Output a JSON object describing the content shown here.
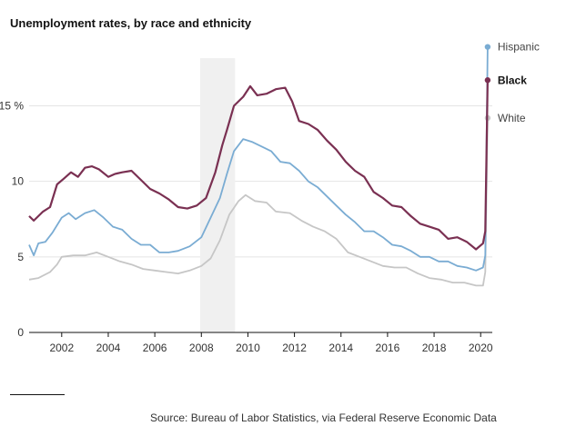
{
  "chart_data": {
    "type": "line",
    "title": "Unemployment rates, by race and ethnicity",
    "source": "Source: Bureau of Labor Statistics, via Federal Reserve Economic Data",
    "xlim": [
      2000.6,
      2020.5
    ],
    "ylim": [
      0,
      19
    ],
    "x_ticks": [
      2002,
      2004,
      2006,
      2008,
      2010,
      2012,
      2014,
      2016,
      2018,
      2020
    ],
    "x_tick_labels": [
      "2002",
      "2004",
      "2006",
      "2008",
      "2010",
      "2012",
      "2014",
      "2016",
      "2018",
      "2020"
    ],
    "y_ticks": [
      0,
      5,
      10,
      15
    ],
    "y_tick_labels": [
      "0",
      "5",
      "10",
      "15 %"
    ],
    "grid": "horizontal",
    "recession_band": [
      2007.95,
      2009.45
    ],
    "series": [
      {
        "name": "White",
        "color": "#c6c6c6",
        "label_bold": false,
        "points": [
          [
            2000.6,
            3.5
          ],
          [
            2001.0,
            3.6
          ],
          [
            2001.5,
            4.0
          ],
          [
            2001.8,
            4.5
          ],
          [
            2002.0,
            5.0
          ],
          [
            2002.5,
            5.1
          ],
          [
            2003.0,
            5.1
          ],
          [
            2003.5,
            5.3
          ],
          [
            2004.0,
            5.0
          ],
          [
            2004.5,
            4.7
          ],
          [
            2005.0,
            4.5
          ],
          [
            2005.5,
            4.2
          ],
          [
            2006.0,
            4.1
          ],
          [
            2006.5,
            4.0
          ],
          [
            2007.0,
            3.9
          ],
          [
            2007.5,
            4.1
          ],
          [
            2008.0,
            4.4
          ],
          [
            2008.4,
            4.9
          ],
          [
            2008.8,
            6.1
          ],
          [
            2009.2,
            7.8
          ],
          [
            2009.6,
            8.7
          ],
          [
            2009.9,
            9.1
          ],
          [
            2010.3,
            8.7
          ],
          [
            2010.8,
            8.6
          ],
          [
            2011.2,
            8.0
          ],
          [
            2011.8,
            7.9
          ],
          [
            2012.3,
            7.4
          ],
          [
            2012.8,
            7.0
          ],
          [
            2013.3,
            6.7
          ],
          [
            2013.8,
            6.2
          ],
          [
            2014.3,
            5.3
          ],
          [
            2014.8,
            5.0
          ],
          [
            2015.3,
            4.7
          ],
          [
            2015.8,
            4.4
          ],
          [
            2016.3,
            4.3
          ],
          [
            2016.8,
            4.3
          ],
          [
            2017.3,
            3.9
          ],
          [
            2017.8,
            3.6
          ],
          [
            2018.3,
            3.5
          ],
          [
            2018.8,
            3.3
          ],
          [
            2019.3,
            3.3
          ],
          [
            2019.8,
            3.1
          ],
          [
            2020.1,
            3.1
          ],
          [
            2020.2,
            4.0
          ],
          [
            2020.3,
            14.2
          ]
        ]
      },
      {
        "name": "Hispanic",
        "color": "#7aacd3",
        "label_bold": false,
        "points": [
          [
            2000.6,
            5.8
          ],
          [
            2000.8,
            5.1
          ],
          [
            2001.0,
            5.9
          ],
          [
            2001.3,
            6.0
          ],
          [
            2001.6,
            6.6
          ],
          [
            2002.0,
            7.6
          ],
          [
            2002.3,
            7.9
          ],
          [
            2002.6,
            7.5
          ],
          [
            2003.0,
            7.9
          ],
          [
            2003.4,
            8.1
          ],
          [
            2003.8,
            7.6
          ],
          [
            2004.2,
            7.0
          ],
          [
            2004.6,
            6.8
          ],
          [
            2005.0,
            6.2
          ],
          [
            2005.4,
            5.8
          ],
          [
            2005.8,
            5.8
          ],
          [
            2006.2,
            5.3
          ],
          [
            2006.6,
            5.3
          ],
          [
            2007.0,
            5.4
          ],
          [
            2007.5,
            5.7
          ],
          [
            2008.0,
            6.3
          ],
          [
            2008.4,
            7.6
          ],
          [
            2008.8,
            8.9
          ],
          [
            2009.1,
            10.5
          ],
          [
            2009.4,
            12.0
          ],
          [
            2009.8,
            12.8
          ],
          [
            2010.2,
            12.6
          ],
          [
            2010.6,
            12.3
          ],
          [
            2011.0,
            12.0
          ],
          [
            2011.4,
            11.3
          ],
          [
            2011.8,
            11.2
          ],
          [
            2012.2,
            10.7
          ],
          [
            2012.6,
            10.0
          ],
          [
            2013.0,
            9.6
          ],
          [
            2013.4,
            9.0
          ],
          [
            2013.8,
            8.4
          ],
          [
            2014.2,
            7.8
          ],
          [
            2014.6,
            7.3
          ],
          [
            2015.0,
            6.7
          ],
          [
            2015.4,
            6.7
          ],
          [
            2015.8,
            6.3
          ],
          [
            2016.2,
            5.8
          ],
          [
            2016.6,
            5.7
          ],
          [
            2017.0,
            5.4
          ],
          [
            2017.4,
            5.0
          ],
          [
            2017.8,
            5.0
          ],
          [
            2018.2,
            4.7
          ],
          [
            2018.6,
            4.7
          ],
          [
            2019.0,
            4.4
          ],
          [
            2019.4,
            4.3
          ],
          [
            2019.8,
            4.1
          ],
          [
            2020.1,
            4.3
          ],
          [
            2020.2,
            5.1
          ],
          [
            2020.3,
            18.9
          ]
        ]
      },
      {
        "name": "Black",
        "color": "#7a3052",
        "label_bold": true,
        "points": [
          [
            2000.6,
            7.7
          ],
          [
            2000.8,
            7.4
          ],
          [
            2001.2,
            8.0
          ],
          [
            2001.5,
            8.3
          ],
          [
            2001.8,
            9.8
          ],
          [
            2002.1,
            10.2
          ],
          [
            2002.4,
            10.6
          ],
          [
            2002.7,
            10.3
          ],
          [
            2003.0,
            10.9
          ],
          [
            2003.3,
            11.0
          ],
          [
            2003.6,
            10.8
          ],
          [
            2004.0,
            10.3
          ],
          [
            2004.3,
            10.5
          ],
          [
            2004.6,
            10.6
          ],
          [
            2005.0,
            10.7
          ],
          [
            2005.4,
            10.1
          ],
          [
            2005.8,
            9.5
          ],
          [
            2006.2,
            9.2
          ],
          [
            2006.6,
            8.8
          ],
          [
            2007.0,
            8.3
          ],
          [
            2007.4,
            8.2
          ],
          [
            2007.8,
            8.4
          ],
          [
            2008.2,
            8.9
          ],
          [
            2008.6,
            10.6
          ],
          [
            2008.9,
            12.4
          ],
          [
            2009.1,
            13.4
          ],
          [
            2009.4,
            15.0
          ],
          [
            2009.8,
            15.6
          ],
          [
            2010.1,
            16.3
          ],
          [
            2010.4,
            15.7
          ],
          [
            2010.8,
            15.8
          ],
          [
            2011.2,
            16.1
          ],
          [
            2011.6,
            16.2
          ],
          [
            2011.9,
            15.3
          ],
          [
            2012.2,
            14.0
          ],
          [
            2012.6,
            13.8
          ],
          [
            2013.0,
            13.4
          ],
          [
            2013.4,
            12.7
          ],
          [
            2013.8,
            12.1
          ],
          [
            2014.2,
            11.3
          ],
          [
            2014.6,
            10.7
          ],
          [
            2015.0,
            10.3
          ],
          [
            2015.4,
            9.3
          ],
          [
            2015.8,
            8.9
          ],
          [
            2016.2,
            8.4
          ],
          [
            2016.6,
            8.3
          ],
          [
            2017.0,
            7.7
          ],
          [
            2017.4,
            7.2
          ],
          [
            2017.8,
            7.0
          ],
          [
            2018.2,
            6.8
          ],
          [
            2018.6,
            6.2
          ],
          [
            2019.0,
            6.3
          ],
          [
            2019.4,
            6.0
          ],
          [
            2019.8,
            5.5
          ],
          [
            2020.1,
            5.9
          ],
          [
            2020.2,
            6.7
          ],
          [
            2020.3,
            16.7
          ]
        ]
      }
    ]
  }
}
